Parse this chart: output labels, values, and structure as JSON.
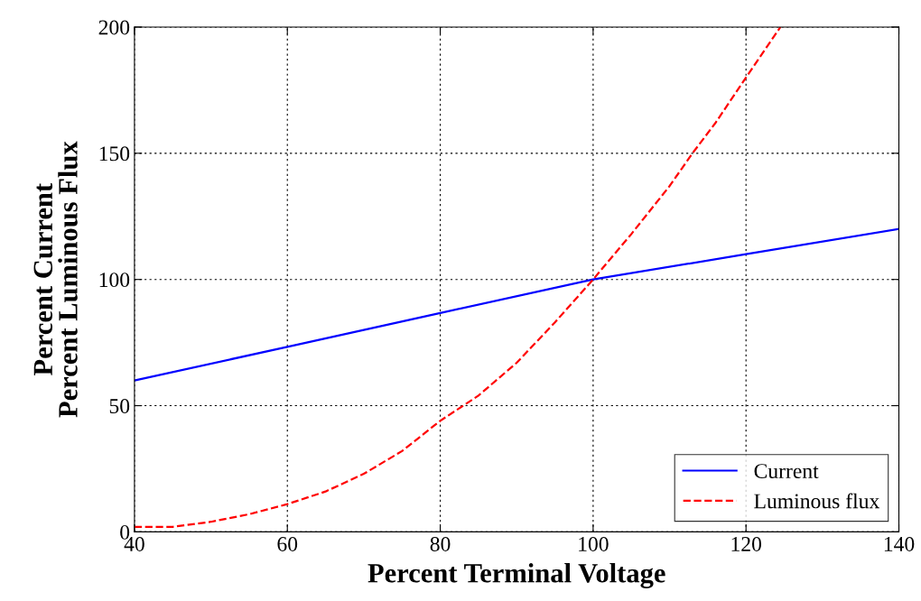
{
  "chart_data": {
    "type": "line",
    "xlabel": "Percent Terminal Voltage",
    "ylabel": "Percent Current\nPercent Luminous Flux",
    "xlim": [
      40,
      140
    ],
    "ylim": [
      0,
      200
    ],
    "xticks": [
      40,
      60,
      80,
      100,
      120,
      140
    ],
    "yticks": [
      0,
      50,
      100,
      150,
      200
    ],
    "grid": true,
    "legend": "bottom right",
    "series": [
      {
        "name": "Current",
        "color": "#0000ff",
        "line_style": "solid",
        "x": [
          40,
          60,
          80,
          100,
          120,
          140
        ],
        "values": [
          60,
          73.3,
          86.7,
          100,
          110,
          120
        ]
      },
      {
        "name": "Luminous flux",
        "color": "#ff0000",
        "line_style": "dashed",
        "x": [
          40,
          45,
          50,
          55,
          60,
          65,
          70,
          75,
          80,
          85,
          90,
          95,
          100,
          105,
          110,
          113,
          116,
          120,
          124.5
        ],
        "values": [
          2,
          2,
          4,
          7,
          11,
          16,
          23,
          32,
          44,
          54,
          67,
          83,
          100,
          118,
          137,
          150,
          162,
          180,
          200
        ]
      }
    ]
  }
}
